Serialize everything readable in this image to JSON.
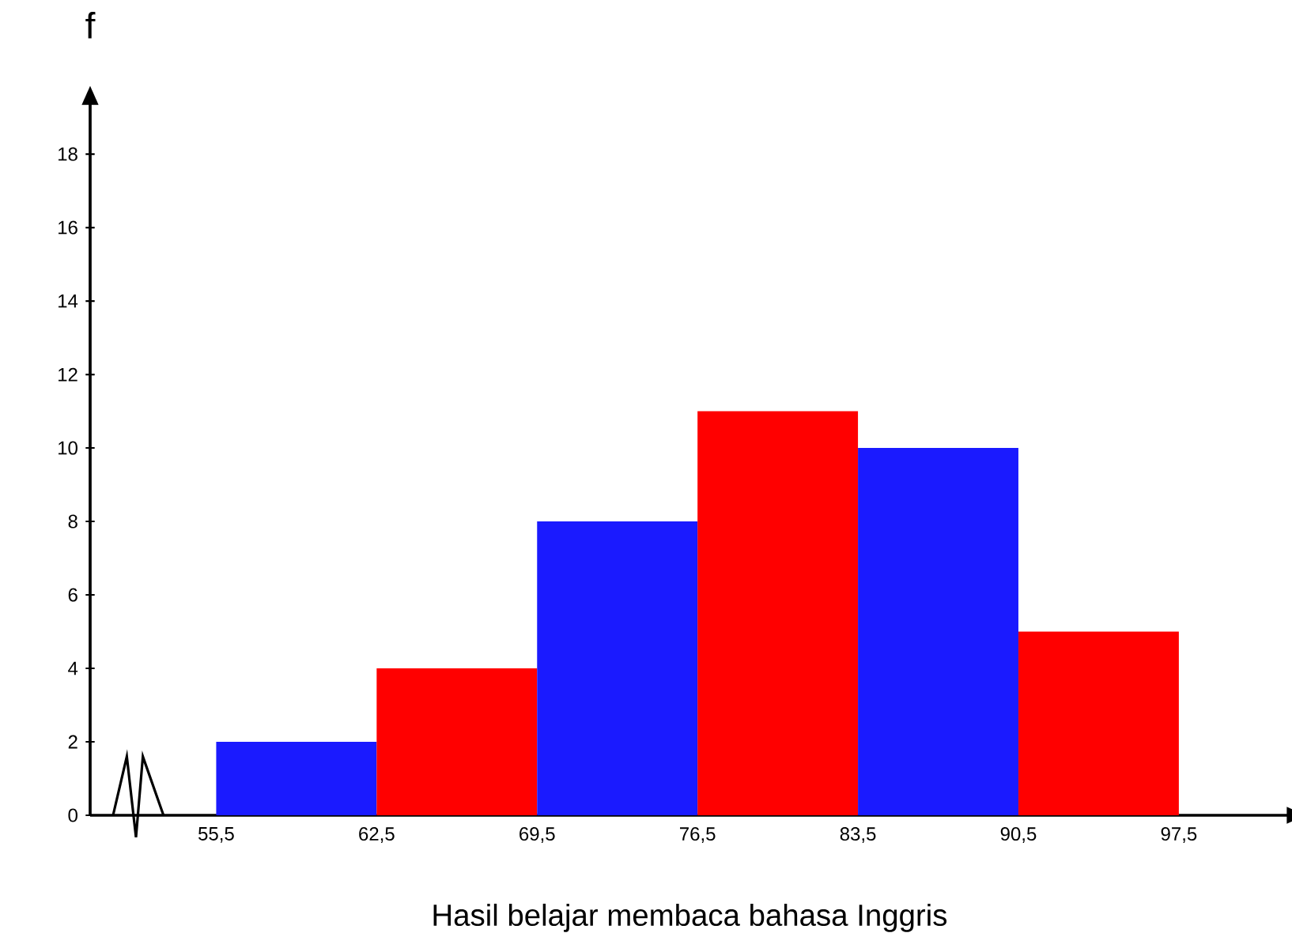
{
  "chart_data": {
    "type": "histogram",
    "xlabel": "Hasil belajar membaca bahasa Inggris",
    "ylabel": "f",
    "bins": [
      55.5,
      62.5,
      69.5,
      76.5,
      83.5,
      90.5,
      97.5
    ],
    "values": [
      2,
      4,
      8,
      11,
      10,
      5
    ],
    "colors": [
      "#1a1aff",
      "#ff0000",
      "#1a1aff",
      "#ff0000",
      "#1a1aff",
      "#ff0000"
    ],
    "xlim": [
      50,
      102.3
    ],
    "ylim": [
      0,
      19.4
    ],
    "xticks": [
      {
        "value": 55.5,
        "label": "55,5"
      },
      {
        "value": 62.5,
        "label": "62,5"
      },
      {
        "value": 69.5,
        "label": "69,5"
      },
      {
        "value": 76.5,
        "label": "76,5"
      },
      {
        "value": 83.5,
        "label": "83,5"
      },
      {
        "value": 90.5,
        "label": "90,5"
      },
      {
        "value": 97.5,
        "label": "97,5"
      }
    ],
    "yticks": [
      0,
      2,
      4,
      6,
      8,
      10,
      12,
      14,
      16,
      18
    ],
    "grid": false
  }
}
